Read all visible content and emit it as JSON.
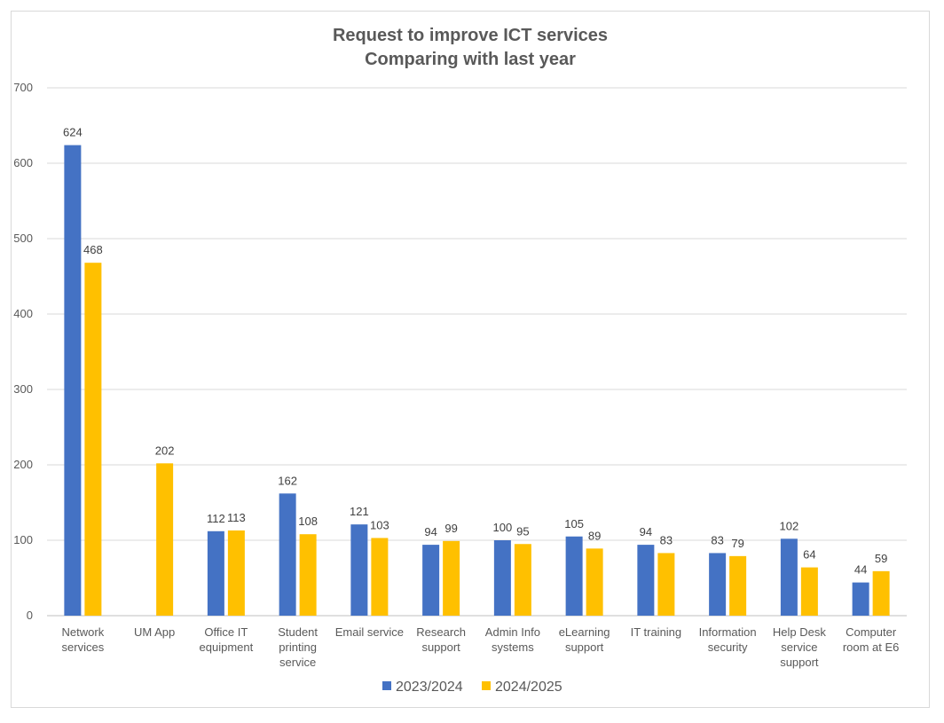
{
  "chart_data": {
    "type": "bar",
    "title": [
      "Request to improve ICT services",
      "Comparing with last year"
    ],
    "xlabel": "",
    "ylabel": "",
    "ylim": [
      0,
      700
    ],
    "yticks": [
      0,
      100,
      200,
      300,
      400,
      500,
      600,
      700
    ],
    "grid": true,
    "legend_position": "bottom",
    "categories": [
      [
        "Network",
        "services"
      ],
      [
        "UM App"
      ],
      [
        "Office IT",
        "equipment"
      ],
      [
        "Student",
        "printing",
        "service"
      ],
      [
        "Email service"
      ],
      [
        "Research",
        "support"
      ],
      [
        "Admin Info",
        "systems"
      ],
      [
        "eLearning",
        "support"
      ],
      [
        "IT training"
      ],
      [
        "Information",
        "security"
      ],
      [
        "Help Desk",
        "service",
        "support"
      ],
      [
        "Computer",
        "room at E6"
      ]
    ],
    "series": [
      {
        "name": "2023/2024",
        "color": "#4472c4",
        "values": [
          624,
          null,
          112,
          162,
          121,
          94,
          100,
          105,
          94,
          83,
          102,
          44
        ]
      },
      {
        "name": "2024/2025",
        "color": "#ffc000",
        "values": [
          468,
          202,
          113,
          108,
          103,
          99,
          95,
          89,
          83,
          79,
          64,
          59
        ]
      }
    ]
  }
}
